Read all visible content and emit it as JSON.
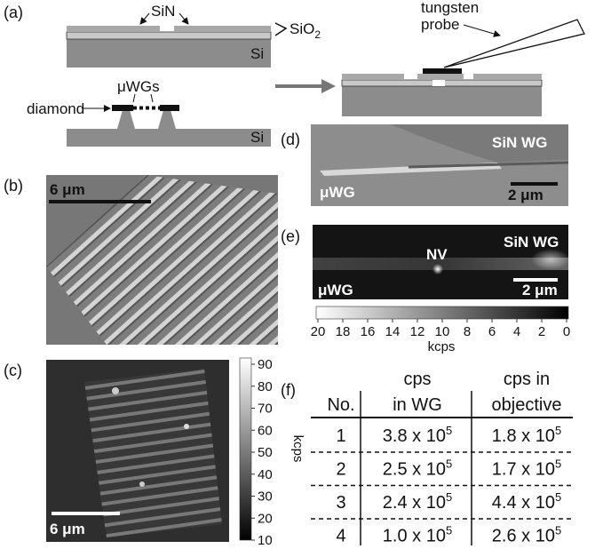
{
  "panels": {
    "a": {
      "label": "(a)",
      "sin": "SiN",
      "sio2": {
        "base": "SiO",
        "sub": "2"
      },
      "si_top": "Si",
      "probe": [
        "tungsten",
        "probe"
      ],
      "diamond": "diamond",
      "uwgs": "μWGs",
      "si_bottom": "Si"
    },
    "b": {
      "label": "(b)",
      "scale_bar": "6 μm"
    },
    "c": {
      "label": "(c)",
      "colorbar_ticks": [
        90,
        80,
        70,
        60,
        50,
        40,
        30,
        20,
        10
      ],
      "colorbar_unit": "kcps",
      "scale_bar": "6 μm"
    },
    "d": {
      "label": "(d)",
      "right": "SiN WG",
      "left": "μWG",
      "scale_bar": "2 μm"
    },
    "e": {
      "label": "(e)",
      "nv": "NV",
      "right": "SiN WG",
      "left": "μWG",
      "scale_bar": "2 μm",
      "colorbar_ticks": [
        20,
        18,
        16,
        14,
        12,
        10,
        8,
        6,
        4,
        2,
        0
      ],
      "colorbar_unit": "kcps"
    },
    "f": {
      "label": "(f)",
      "header": {
        "no": "No.",
        "wg": [
          "cps",
          "in WG"
        ],
        "obj": [
          "cps in",
          "objective"
        ]
      },
      "rows": [
        {
          "no": 1,
          "wg": {
            "base": "3.8 x 10",
            "exp": "5"
          },
          "obj": {
            "base": "1.8 x 10",
            "exp": "5"
          }
        },
        {
          "no": 2,
          "wg": {
            "base": "2.5 x 10",
            "exp": "5"
          },
          "obj": {
            "base": "1.7 x 10",
            "exp": "5"
          }
        },
        {
          "no": 3,
          "wg": {
            "base": "2.4 x 10",
            "exp": "5"
          },
          "obj": {
            "base": "4.4 x 10",
            "exp": "5"
          }
        },
        {
          "no": 4,
          "wg": {
            "base": "1.0 x 10",
            "exp": "5"
          },
          "obj": {
            "base": "2.6 x 10",
            "exp": "5"
          }
        }
      ]
    }
  }
}
